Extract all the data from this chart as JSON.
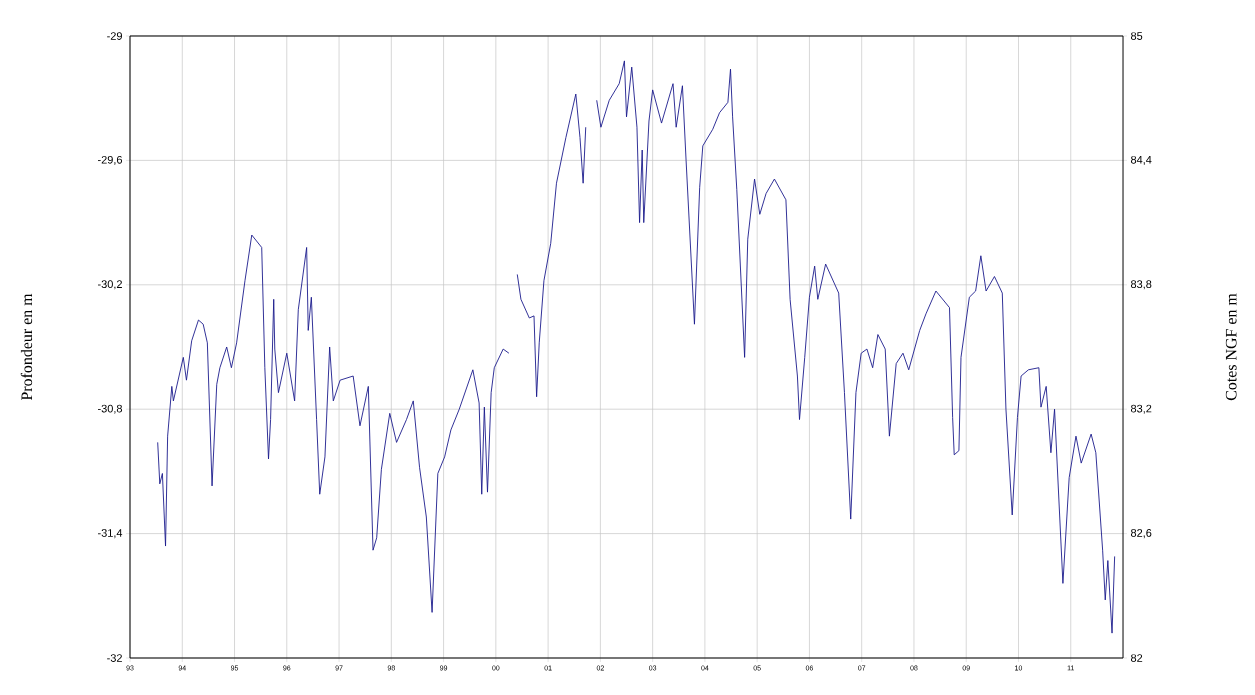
{
  "chart_data": {
    "type": "line",
    "ylabel": "Profondeur en m",
    "y2label": "Cotes NGF en m",
    "x": [
      1993.53,
      1993.57,
      1993.62,
      1993.68,
      1993.72,
      1993.8,
      1993.83,
      1994.02,
      1994.08,
      1994.18,
      1994.31,
      1994.4,
      1994.48,
      1994.57,
      1994.66,
      1994.72,
      1994.85,
      1994.94,
      1995.04,
      1995.2,
      1995.33,
      1995.52,
      1995.58,
      1995.65,
      1995.69,
      1995.75,
      1995.77,
      1995.84,
      1996.0,
      1996.15,
      1996.22,
      1996.38,
      1996.41,
      1996.47,
      1996.57,
      1996.63,
      1996.73,
      1996.82,
      1996.89,
      1997.02,
      1997.27,
      1997.4,
      1997.56,
      1997.65,
      1997.72,
      1997.81,
      1997.97,
      1998.1,
      1998.29,
      1998.42,
      1998.54,
      1998.67,
      1998.78,
      1998.89,
      1999.02,
      1999.14,
      1999.3,
      1999.56,
      1999.68,
      1999.73,
      1999.78,
      1999.84,
      1999.91,
      1999.97,
      2000.14,
      2000.25,
      2000.33,
      2000.41,
      2000.48,
      2000.64,
      2000.73,
      2000.78,
      2000.83,
      2000.92,
      2001.05,
      2001.16,
      2001.34,
      2001.53,
      2001.61,
      2001.67,
      2001.72,
      2001.82,
      2001.93,
      2002.01,
      2002.17,
      2002.36,
      2002.46,
      2002.5,
      2002.6,
      2002.7,
      2002.75,
      2002.8,
      2002.83,
      2002.93,
      2003.0,
      2003.17,
      2003.39,
      2003.45,
      2003.57,
      2003.64,
      2003.8,
      2003.9,
      2003.96,
      2004.15,
      2004.28,
      2004.44,
      2004.49,
      2004.53,
      2004.61,
      2004.76,
      2004.82,
      2004.95,
      2005.05,
      2005.17,
      2005.33,
      2005.55,
      2005.63,
      2005.77,
      2005.81,
      2005.91,
      2006.0,
      2006.1,
      2006.16,
      2006.31,
      2006.56,
      2006.67,
      2006.79,
      2006.89,
      2006.99,
      2007.1,
      2007.21,
      2007.31,
      2007.45,
      2007.53,
      2007.66,
      2007.79,
      2007.9,
      2008.11,
      2008.23,
      2008.42,
      2008.68,
      2008.74,
      2008.77,
      2008.86,
      2008.9,
      2009.06,
      2009.18,
      2009.28,
      2009.38,
      2009.54,
      2009.69,
      2009.76,
      2009.88,
      2009.98,
      2010.05,
      2010.19,
      2010.39,
      2010.43,
      2010.53,
      2010.62,
      2010.69,
      2010.85,
      2010.97,
      2011.1,
      2011.2,
      2011.39,
      2011.48,
      2011.61,
      2011.66,
      2011.71,
      2011.79,
      2011.84
    ],
    "series": [
      {
        "color": "#1a1a8c",
        "values": [
          -30.96,
          -31.16,
          -31.11,
          -31.46,
          -30.93,
          -30.69,
          -30.76,
          -30.55,
          -30.66,
          -30.47,
          -30.37,
          -30.39,
          -30.48,
          -31.17,
          -30.68,
          -30.6,
          -30.5,
          -30.6,
          -30.48,
          -30.18,
          -29.96,
          -30.02,
          -30.6,
          -31.04,
          -30.85,
          -30.27,
          -30.51,
          -30.72,
          -30.53,
          -30.76,
          -30.32,
          -30.02,
          -30.42,
          -30.26,
          -30.85,
          -31.21,
          -31.03,
          -30.5,
          -30.76,
          -30.66,
          -30.64,
          -30.88,
          -30.69,
          -31.48,
          -31.42,
          -31.09,
          -30.82,
          -30.96,
          -30.85,
          -30.76,
          -31.08,
          -31.32,
          -31.78,
          -31.11,
          -31.03,
          -30.9,
          -30.8,
          -30.61,
          -30.77,
          -31.21,
          -30.79,
          -31.2,
          -30.72,
          -30.6,
          -30.51,
          -30.53,
          null,
          -30.15,
          -30.27,
          -30.36,
          -30.35,
          -30.74,
          -30.48,
          -30.18,
          -30.0,
          -29.71,
          -29.49,
          -29.28,
          -29.49,
          -29.71,
          -29.44,
          null,
          -29.31,
          -29.44,
          -29.31,
          -29.23,
          -29.12,
          -29.39,
          -29.15,
          -29.44,
          -29.9,
          -29.55,
          -29.9,
          -29.41,
          -29.26,
          -29.42,
          -29.23,
          -29.44,
          -29.24,
          -29.6,
          -30.39,
          -29.73,
          -29.53,
          -29.45,
          -29.37,
          -29.32,
          -29.16,
          -29.39,
          -29.74,
          -30.55,
          -29.98,
          -29.69,
          -29.86,
          -29.76,
          -29.69,
          -29.79,
          -30.27,
          -30.64,
          -30.85,
          -30.55,
          -30.26,
          -30.11,
          -30.27,
          -30.1,
          -30.24,
          -30.72,
          -31.33,
          -30.72,
          -30.53,
          -30.51,
          -30.6,
          -30.44,
          -30.51,
          -30.93,
          -30.58,
          -30.53,
          -30.61,
          -30.42,
          -30.34,
          -30.23,
          -30.31,
          -30.84,
          -31.02,
          -31.0,
          -30.55,
          -30.26,
          -30.23,
          -30.06,
          -30.23,
          -30.16,
          -30.24,
          -30.8,
          -31.31,
          -30.84,
          -30.64,
          -30.61,
          -30.6,
          -30.79,
          -30.69,
          -31.01,
          -30.8,
          -31.64,
          -31.13,
          -30.93,
          -31.06,
          -30.92,
          -31.01,
          -31.48,
          -31.72,
          -31.53,
          -31.88,
          -31.51
        ]
      }
    ],
    "xlim": [
      1993,
      2012
    ],
    "xticks": [
      {
        "value": 1993,
        "label": "93"
      },
      {
        "value": 1994,
        "label": "94"
      },
      {
        "value": 1995,
        "label": "95"
      },
      {
        "value": 1996,
        "label": "96"
      },
      {
        "value": 1997,
        "label": "97"
      },
      {
        "value": 1998,
        "label": "98"
      },
      {
        "value": 1999,
        "label": "99"
      },
      {
        "value": 2000,
        "label": "00"
      },
      {
        "value": 2001,
        "label": "01"
      },
      {
        "value": 2002,
        "label": "02"
      },
      {
        "value": 2003,
        "label": "03"
      },
      {
        "value": 2004,
        "label": "04"
      },
      {
        "value": 2005,
        "label": "05"
      },
      {
        "value": 2006,
        "label": "06"
      },
      {
        "value": 2007,
        "label": "07"
      },
      {
        "value": 2008,
        "label": "08"
      },
      {
        "value": 2009,
        "label": "09"
      },
      {
        "value": 2010,
        "label": "10"
      },
      {
        "value": 2011,
        "label": "11"
      }
    ],
    "ylim": [
      -32,
      -29
    ],
    "yticks": [
      -29,
      {
        "value": -29.6,
        "label": "-29,6"
      },
      {
        "value": -30.2,
        "label": "-30,2"
      },
      {
        "value": -30.8,
        "label": "-30,8"
      },
      {
        "value": -31.4,
        "label": "-31,4"
      },
      -32
    ],
    "y2lim": [
      82,
      85
    ],
    "y2ticks": [
      85,
      {
        "value": 84.4,
        "label": "84,4"
      },
      {
        "value": 83.8,
        "label": "83,8"
      },
      {
        "value": 83.2,
        "label": "83,2"
      },
      {
        "value": 82.6,
        "label": "82,6"
      },
      82
    ],
    "grid": true
  }
}
